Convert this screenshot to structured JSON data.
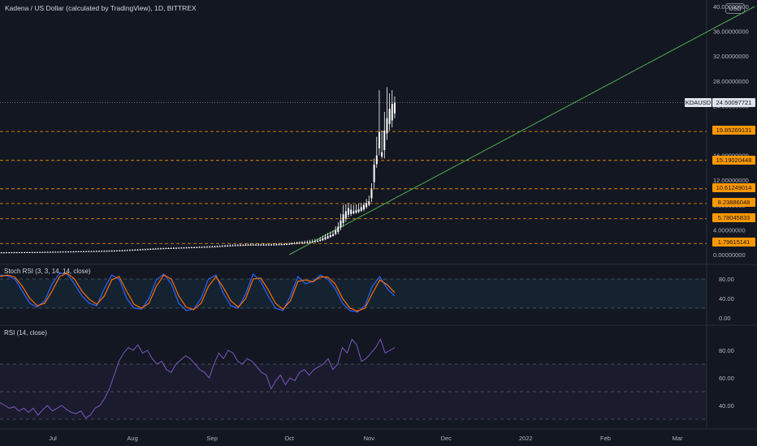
{
  "header": {
    "title": "Kadena / US Dollar (calculated by TradingView), 1D, BITTREX",
    "currency": "USD"
  },
  "colors": {
    "background": "#131722",
    "candle": "#ffffff",
    "hline": "#ff9800",
    "trendline": "#4caf50",
    "stoch_k": "#2962ff",
    "stoch_d": "#ff6d00",
    "rsi": "#7e57c2"
  },
  "price_axis": {
    "ticks": [
      "40.00000000",
      "36.00000000",
      "32.00000000",
      "28.00000000",
      "24.00000000",
      "20.00000000",
      "16.00000000",
      "12.00000000",
      "8.00000000",
      "4.00000000",
      "0.00000000"
    ]
  },
  "symbol_label": "KDAUSD",
  "current_price": "24.50097721",
  "horizontal_levels": [
    "19.85269131",
    "15.19020448",
    "10.61249014",
    "8.23886048",
    "5.78045833",
    "1.79615141"
  ],
  "stoch": {
    "label": "Stoch RSI (3, 3, 14, 14, close)",
    "ticks": [
      "80.00",
      "40.00",
      "0.00"
    ]
  },
  "rsi": {
    "label": "RSI (14, close)",
    "ticks": [
      "80.00",
      "60.00",
      "40.00"
    ]
  },
  "time_axis": {
    "ticks": [
      "Jul",
      "Aug",
      "Sep",
      "Oct",
      "Nov",
      "Dec",
      "2022",
      "Feb",
      "Mar"
    ]
  },
  "chart_data": [
    {
      "type": "candlestick",
      "title": "Kadena / US Dollar (calculated by TradingView), 1D, BITTREX",
      "ylim": [
        0,
        40
      ],
      "x": [
        "2021-06-10",
        "2021-06-17",
        "2021-06-24",
        "2021-07-01",
        "2021-07-08",
        "2021-07-15",
        "2021-07-22",
        "2021-07-29",
        "2021-08-05",
        "2021-08-12",
        "2021-08-19",
        "2021-08-26",
        "2021-09-02",
        "2021-09-09",
        "2021-09-16",
        "2021-09-23",
        "2021-09-30",
        "2021-10-04",
        "2021-10-08",
        "2021-10-12",
        "2021-10-15",
        "2021-10-18",
        "2021-10-20",
        "2021-10-22",
        "2021-10-24",
        "2021-10-26",
        "2021-10-28",
        "2021-10-30",
        "2021-11-01",
        "2021-11-02",
        "2021-11-03",
        "2021-11-04",
        "2021-11-05",
        "2021-11-06",
        "2021-11-07",
        "2021-11-08",
        "2021-11-09",
        "2021-11-10",
        "2021-11-11"
      ],
      "close": [
        0.35,
        0.38,
        0.4,
        0.45,
        0.5,
        0.55,
        0.6,
        0.7,
        0.85,
        1.0,
        1.1,
        1.2,
        1.3,
        1.5,
        1.6,
        1.6,
        1.7,
        1.9,
        2.0,
        2.2,
        2.8,
        3.3,
        4.5,
        6.5,
        7.5,
        7.0,
        7.3,
        8.0,
        8.6,
        10.5,
        14.5,
        16.0,
        19.8,
        16.5,
        20.0,
        22.0,
        23.5,
        24.3,
        24.5
      ],
      "high": [
        0.4,
        0.42,
        0.45,
        0.5,
        0.55,
        0.6,
        0.68,
        0.78,
        0.95,
        1.1,
        1.2,
        1.3,
        1.45,
        1.65,
        1.8,
        1.8,
        1.9,
        2.1,
        2.3,
        2.6,
        3.3,
        3.9,
        5.2,
        8.0,
        8.3,
        8.0,
        8.2,
        8.4,
        9.5,
        11.5,
        15.5,
        19.0,
        26.5,
        20.0,
        23.0,
        27.0,
        26.0,
        26.5,
        25.5
      ],
      "low": [
        0.3,
        0.33,
        0.35,
        0.4,
        0.45,
        0.5,
        0.55,
        0.62,
        0.75,
        0.9,
        1.0,
        1.1,
        1.2,
        1.35,
        1.45,
        1.45,
        1.55,
        1.7,
        1.8,
        2.0,
        2.3,
        2.9,
        3.3,
        4.5,
        6.0,
        6.5,
        6.7,
        7.0,
        7.8,
        8.5,
        10.5,
        14.0,
        16.0,
        15.5,
        15.5,
        18.5,
        20.0,
        20.5,
        22.0
      ],
      "trendline": {
        "from": [
          "2021-10-01",
          0
        ],
        "to": [
          "2022-03-31",
          40
        ]
      },
      "levels": [
        19.85269131,
        15.19020448,
        10.61249014,
        8.23886048,
        5.78045833,
        1.79615141
      ],
      "current": 24.50097721
    },
    {
      "type": "line",
      "title": "Stoch RSI (3, 3, 14, 14, close)",
      "ylim": [
        0,
        100
      ],
      "bands": [
        20,
        80
      ],
      "series": [
        {
          "values": [
            88,
            86,
            80,
            55,
            30,
            22,
            35,
            70,
            92,
            90,
            70,
            45,
            30,
            25,
            60,
            88,
            80,
            40,
            20,
            18,
            40,
            78,
            90,
            70,
            30,
            15,
            18,
            40,
            80,
            88,
            50,
            25,
            20,
            50,
            90,
            75,
            45,
            20,
            15,
            45,
            85,
            70,
            75,
            88,
            80,
            60,
            30,
            15,
            12,
            25,
            65,
            85,
            60,
            45
          ]
        },
        {
          "values": [
            85,
            88,
            84,
            65,
            40,
            25,
            30,
            55,
            85,
            92,
            80,
            55,
            38,
            28,
            45,
            78,
            85,
            55,
            28,
            20,
            30,
            65,
            88,
            80,
            45,
            22,
            17,
            30,
            65,
            85,
            62,
            35,
            22,
            40,
            80,
            82,
            58,
            30,
            18,
            35,
            75,
            78,
            74,
            84,
            84,
            70,
            40,
            20,
            14,
            20,
            50,
            78,
            68,
            52
          ]
        }
      ]
    },
    {
      "type": "line",
      "title": "RSI (14, close)",
      "ylim": [
        30,
        90
      ],
      "bands": [
        70,
        50,
        30
      ],
      "series": [
        {
          "values": [
            42,
            40,
            38,
            39,
            36,
            38,
            35,
            38,
            33,
            37,
            40,
            36,
            38,
            40,
            37,
            35,
            34,
            36,
            31,
            33,
            38,
            40,
            45,
            52,
            62,
            72,
            78,
            82,
            80,
            84,
            78,
            80,
            74,
            70,
            72,
            66,
            64,
            70,
            73,
            76,
            74,
            70,
            66,
            64,
            60,
            70,
            78,
            74,
            80,
            78,
            72,
            70,
            74,
            72,
            68,
            64,
            62,
            52,
            58,
            62,
            55,
            60,
            58,
            64,
            66,
            62,
            66,
            68,
            70,
            74,
            66,
            70,
            82,
            78,
            88,
            84,
            72,
            74,
            78,
            82,
            88,
            78,
            80,
            82
          ]
        }
      ]
    }
  ]
}
